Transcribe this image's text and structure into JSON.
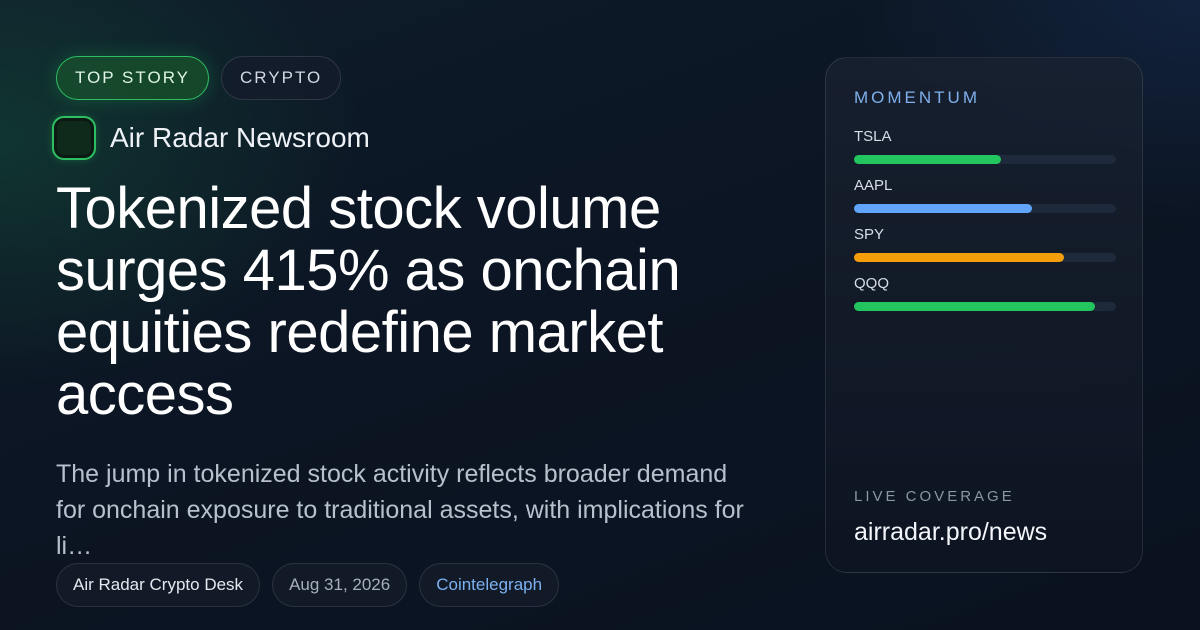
{
  "tags": [
    "TOP STORY",
    "CRYPTO"
  ],
  "source": {
    "name": "Air Radar Newsroom"
  },
  "headline": "Tokenized stock volume surges 415% as onchain equities redefine market access",
  "summary": "The jump in tokenized stock activity reflects broader demand for onchain exposure to traditional assets, with implications for li…",
  "meta": {
    "author": "Air Radar Crypto Desk",
    "date": "Aug 31, 2026",
    "publisher": "Cointelegraph"
  },
  "panel": {
    "title": "MOMENTUM",
    "items": [
      {
        "label": "TSLA",
        "fraction": 0.56,
        "color": "#22c55e"
      },
      {
        "label": "AAPL",
        "fraction": 0.68,
        "color": "#60a5fa"
      },
      {
        "label": "SPY",
        "fraction": 0.8,
        "color": "#f59e0b"
      },
      {
        "label": "QQQ",
        "fraction": 0.92,
        "color": "#22c55e"
      }
    ],
    "live_label": "LIVE COVERAGE",
    "live_url": "airradar.pro/news"
  }
}
